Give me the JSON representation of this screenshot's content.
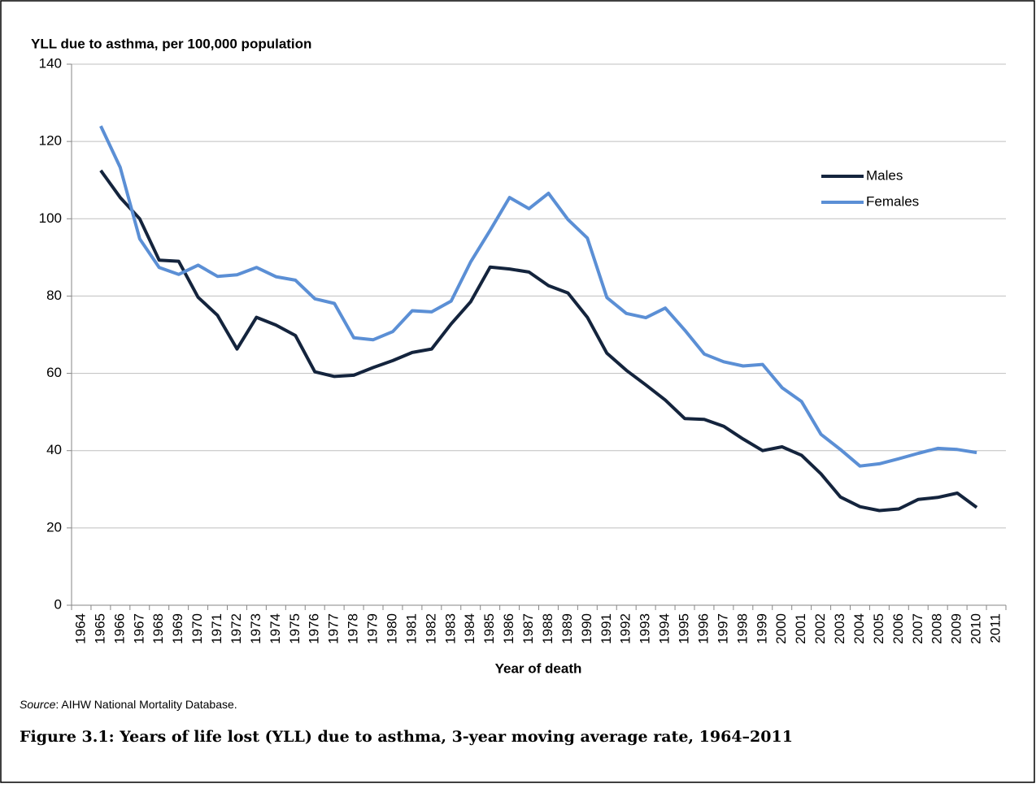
{
  "chart_data": {
    "type": "line",
    "y_axis_label": "YLL due to asthma, per 100,000 population",
    "x_axis_label": "Year of death",
    "source_label": "Source",
    "source_text": ": AIHW National Mortality Database.",
    "caption": "Figure 3.1: Years of life lost (YLL) due to asthma, 3-year moving average rate, 1964–2011",
    "categories": [
      "1964",
      "1965",
      "1966",
      "1967",
      "1968",
      "1969",
      "1970",
      "1971",
      "1972",
      "1973",
      "1974",
      "1975",
      "1976",
      "1977",
      "1978",
      "1979",
      "1980",
      "1981",
      "1982",
      "1983",
      "1984",
      "1985",
      "1986",
      "1987",
      "1988",
      "1989",
      "1990",
      "1991",
      "1992",
      "1993",
      "1994",
      "1995",
      "1996",
      "1997",
      "1998",
      "1999",
      "2000",
      "2001",
      "2002",
      "2003",
      "2004",
      "2005",
      "2006",
      "2007",
      "2008",
      "2009",
      "2010",
      "2011"
    ],
    "series": [
      {
        "name": "Males",
        "color": "#14243d",
        "values": [
          null,
          112.5,
          105.5,
          100,
          89.3,
          89,
          79.7,
          75,
          66.3,
          74.5,
          72.5,
          69.8,
          60.4,
          59.2,
          59.5,
          61.5,
          63.3,
          65.4,
          66.3,
          72.8,
          78.5,
          87.5,
          87,
          86.2,
          82.7,
          80.8,
          74.5,
          65.2,
          60.8,
          57,
          53.1,
          48.3,
          48.1,
          46.3,
          43,
          40,
          41,
          38.8,
          34,
          28,
          25.5,
          24.5,
          24.9,
          27.4,
          27.9,
          29,
          25.3,
          null
        ]
      },
      {
        "name": "Females",
        "color": "#5b8fd5",
        "values": [
          null,
          124,
          113.3,
          94.8,
          87.4,
          85.6,
          88,
          85.1,
          85.5,
          87.4,
          85,
          84.1,
          79.3,
          78.1,
          69.2,
          68.7,
          70.8,
          76.2,
          75.9,
          78.7,
          88.8,
          97,
          105.5,
          102.6,
          106.6,
          99.8,
          95,
          79.6,
          75.5,
          74.4,
          76.9,
          71.2,
          65,
          63,
          61.9,
          62.3,
          56.3,
          52.7,
          44.2,
          40.3,
          36,
          36.6,
          37.9,
          39.3,
          40.6,
          40.3,
          39.5,
          null
        ]
      }
    ],
    "ylim": [
      0,
      140
    ],
    "yticks": [
      0,
      20,
      40,
      60,
      80,
      100,
      120,
      140
    ],
    "grid": true,
    "legend": "upper right"
  }
}
